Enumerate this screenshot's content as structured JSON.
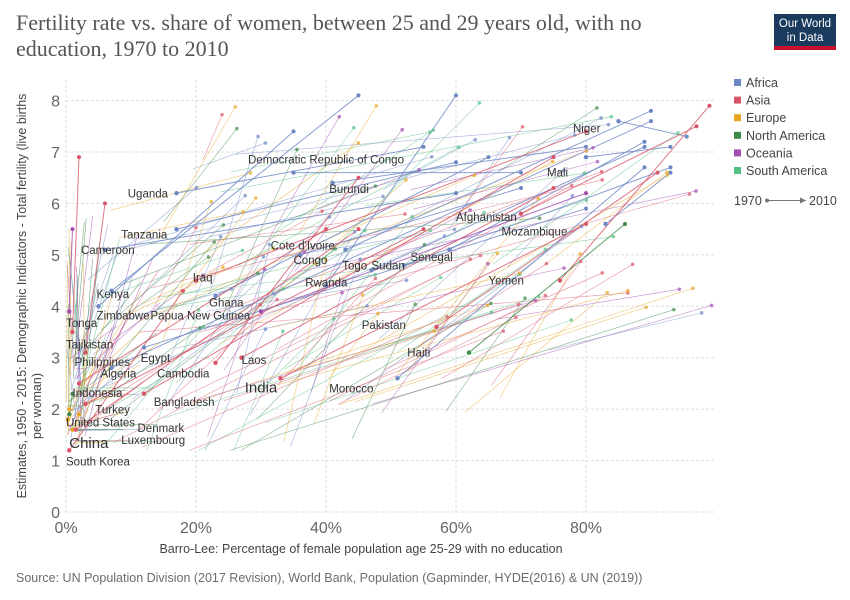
{
  "header": {
    "title": "Fertility rate vs. share of women, between 25 and 29 years old, with no education, 1970 to 2010",
    "logo_line1": "Our World",
    "logo_line2": "in Data"
  },
  "footer": {
    "source": "Source: UN Population Division (2017 Revision), World Bank, Population (Gapminder, HYDE(2016) & UN (2019))"
  },
  "colors": {
    "Africa": "#6d87c4",
    "Asia": "#d9566a",
    "Europe": "#e8a524",
    "North America": "#3e8a4a",
    "Oceania": "#a04cb0",
    "South America": "#55c083"
  },
  "chart_data": {
    "type": "scatter",
    "title": "Fertility rate vs. share of women, between 25 and 29 years old, with no education, 1970 to 2010",
    "xlabel": "Barro-Lee: Percentage of female population age 25-29 with no education",
    "ylabel": "Estimates, 1950 - 2015: Demographic Indicators - Total fertility (live births per woman)",
    "xlim": [
      0,
      100
    ],
    "ylim": [
      0,
      8.4
    ],
    "x_ticks": [
      "0%",
      "20%",
      "40%",
      "60%",
      "80%"
    ],
    "y_ticks": [
      "0",
      "1",
      "2",
      "3",
      "4",
      "5",
      "6",
      "7",
      "8"
    ],
    "legend": {
      "position": "right",
      "entries": [
        "Africa",
        "Asia",
        "Europe",
        "North America",
        "Oceania",
        "South America"
      ],
      "time_start": "1970",
      "time_end": "2010"
    },
    "labeled_series": [
      {
        "name": "Niger",
        "region": "Africa",
        "x": [
          95.5,
          85
        ],
        "y": [
          7.3,
          7.6
        ]
      },
      {
        "name": "Mali",
        "region": "Africa",
        "x": [
          93,
          80
        ],
        "y": [
          7.1,
          6.9
        ]
      },
      {
        "name": "Democratic Republic of Congo",
        "region": "Africa",
        "x": [
          70,
          35
        ],
        "y": [
          6.6,
          6.6
        ]
      },
      {
        "name": "Burundi",
        "region": "Africa",
        "x": [
          80,
          41
        ],
        "y": [
          7.1,
          6.4
        ]
      },
      {
        "name": "Uganda",
        "region": "Africa",
        "x": [
          55,
          17
        ],
        "y": [
          7.1,
          6.2
        ]
      },
      {
        "name": "Tanzania",
        "region": "Africa",
        "x": [
          60,
          17
        ],
        "y": [
          6.8,
          5.5
        ]
      },
      {
        "name": "Cameroon",
        "region": "Africa",
        "x": [
          60,
          6
        ],
        "y": [
          6.2,
          5.1
        ]
      },
      {
        "name": "Afghanistan",
        "region": "Asia",
        "x": [
          97,
          70
        ],
        "y": [
          7.5,
          5.8
        ]
      },
      {
        "name": "Mozambique",
        "region": "Africa",
        "x": [
          93,
          83
        ],
        "y": [
          6.6,
          5.6
        ]
      },
      {
        "name": "Cote d'Ivoire",
        "region": "Africa",
        "x": [
          90,
          43
        ],
        "y": [
          7.8,
          5.1
        ]
      },
      {
        "name": "Congo",
        "region": "Africa",
        "x": [
          70,
          36
        ],
        "y": [
          6.3,
          5.0
        ]
      },
      {
        "name": "Togo",
        "region": "Africa",
        "x": [
          89,
          47
        ],
        "y": [
          7.1,
          4.7
        ]
      },
      {
        "name": "Sudan",
        "region": "Africa",
        "x": [
          93,
          52
        ],
        "y": [
          6.7,
          4.8
        ]
      },
      {
        "name": "Senegal",
        "region": "Africa",
        "x": [
          89,
          59
        ],
        "y": [
          7.2,
          5.1
        ]
      },
      {
        "name": "Yemen",
        "region": "Asia",
        "x": [
          99,
          76
        ],
        "y": [
          7.9,
          4.5
        ]
      },
      {
        "name": "Rwanda",
        "region": "Africa",
        "x": [
          60,
          40
        ],
        "y": [
          8.1,
          4.4
        ]
      },
      {
        "name": "Iraq",
        "region": "Asia",
        "x": [
          80,
          20
        ],
        "y": [
          7.4,
          4.5
        ]
      },
      {
        "name": "Kenya",
        "region": "Africa",
        "x": [
          45,
          7
        ],
        "y": [
          8.1,
          4.3
        ]
      },
      {
        "name": "Ghana",
        "region": "Africa",
        "x": [
          65,
          23
        ],
        "y": [
          6.9,
          4.2
        ]
      },
      {
        "name": "Zimbabwe",
        "region": "Africa",
        "x": [
          35,
          5
        ],
        "y": [
          7.4,
          4.0
        ]
      },
      {
        "name": "Papua New Guinea",
        "region": "Oceania",
        "x": [
          80,
          30
        ],
        "y": [
          6.2,
          3.9
        ]
      },
      {
        "name": "Tonga",
        "region": "Oceania",
        "x": [
          1,
          0.5
        ],
        "y": [
          5.5,
          3.9
        ]
      },
      {
        "name": "Pakistan",
        "region": "Asia",
        "x": [
          91,
          57
        ],
        "y": [
          6.6,
          3.6
        ]
      },
      {
        "name": "Tajikistan",
        "region": "Asia",
        "x": [
          2,
          1
        ],
        "y": [
          6.9,
          3.5
        ]
      },
      {
        "name": "Haiti",
        "region": "North America",
        "x": [
          86,
          62
        ],
        "y": [
          5.6,
          3.1
        ]
      },
      {
        "name": "Philippines",
        "region": "Asia",
        "x": [
          6,
          3
        ],
        "y": [
          6.0,
          3.1
        ]
      },
      {
        "name": "Egypt",
        "region": "Africa",
        "x": [
          80,
          12
        ],
        "y": [
          5.9,
          3.2
        ]
      },
      {
        "name": "Laos",
        "region": "Asia",
        "x": [
          75,
          27
        ],
        "y": [
          6.3,
          3.0
        ]
      },
      {
        "name": "Cambodia",
        "region": "Asia",
        "x": [
          45,
          23
        ],
        "y": [
          6.5,
          2.9
        ]
      },
      {
        "name": "Algeria",
        "region": "Africa",
        "x": [
          90,
          7
        ],
        "y": [
          7.6,
          2.8
        ]
      },
      {
        "name": "India",
        "region": "Asia",
        "x": [
          80,
          33
        ],
        "y": [
          5.6,
          2.6
        ]
      },
      {
        "name": "Morocco",
        "region": "Africa",
        "x": [
          89,
          51
        ],
        "y": [
          6.7,
          2.6
        ]
      },
      {
        "name": "Indonesia",
        "region": "Asia",
        "x": [
          40,
          2
        ],
        "y": [
          5.5,
          2.5
        ]
      },
      {
        "name": "Bangladesh",
        "region": "Asia",
        "x": [
          75,
          12
        ],
        "y": [
          6.9,
          2.3
        ]
      },
      {
        "name": "Turkey",
        "region": "Asia",
        "x": [
          55,
          3
        ],
        "y": [
          5.5,
          2.1
        ]
      },
      {
        "name": "United States",
        "region": "North America",
        "x": [
          1,
          0.5
        ],
        "y": [
          2.3,
          1.9
        ]
      },
      {
        "name": "Denmark",
        "region": "Europe",
        "x": [
          0.5,
          0.3
        ],
        "y": [
          2.0,
          1.8
        ]
      },
      {
        "name": "Luxembourg",
        "region": "Europe",
        "x": [
          2,
          1
        ],
        "y": [
          1.9,
          1.6
        ]
      },
      {
        "name": "China",
        "region": "Asia",
        "x": [
          45,
          1.5
        ],
        "y": [
          5.5,
          1.6
        ]
      },
      {
        "name": "South Korea",
        "region": "Asia",
        "x": [
          18,
          0.5
        ],
        "y": [
          4.3,
          1.2
        ]
      }
    ],
    "labels": [
      {
        "text": "Niger",
        "x": 78,
        "y": 7.38
      },
      {
        "text": "Mali",
        "x": 74,
        "y": 6.52
      },
      {
        "text": "Democratic Republic of Congo",
        "x": 28,
        "y": 6.78
      },
      {
        "text": "Burundi",
        "x": 40.5,
        "y": 6.2
      },
      {
        "text": "Uganda",
        "x": 9.5,
        "y": 6.12
      },
      {
        "text": "Tanzania",
        "x": 8.5,
        "y": 5.32
      },
      {
        "text": "Cameroon",
        "x": 2.3,
        "y": 5.02
      },
      {
        "text": "Afghanistan",
        "x": 60,
        "y": 5.66
      },
      {
        "text": "Mozambique",
        "x": 67,
        "y": 5.38
      },
      {
        "text": "Cote d'Ivoire",
        "x": 31.5,
        "y": 5.1
      },
      {
        "text": "Congo",
        "x": 35,
        "y": 4.82
      },
      {
        "text": "Togo",
        "x": 42.5,
        "y": 4.72
      },
      {
        "text": "Sudan",
        "x": 47,
        "y": 4.72
      },
      {
        "text": "Senegal",
        "x": 53,
        "y": 4.88
      },
      {
        "text": "Yemen",
        "x": 65,
        "y": 4.42
      },
      {
        "text": "Rwanda",
        "x": 36.8,
        "y": 4.38
      },
      {
        "text": "Iraq",
        "x": 19.5,
        "y": 4.48
      },
      {
        "text": "Kenya",
        "x": 4.7,
        "y": 4.16
      },
      {
        "text": "Ghana",
        "x": 22,
        "y": 4.0
      },
      {
        "text": "Zimbabwe",
        "x": 4.7,
        "y": 3.74
      },
      {
        "text": "Papua New Guinea",
        "x": 13,
        "y": 3.74
      },
      {
        "text": "Tonga",
        "x": 0,
        "y": 3.6
      },
      {
        "text": "Pakistan",
        "x": 45.5,
        "y": 3.56
      },
      {
        "text": "Tajikistan",
        "x": 0,
        "y": 3.18
      },
      {
        "text": "Haiti",
        "x": 52.5,
        "y": 3.02
      },
      {
        "text": "Philippines",
        "x": 1.3,
        "y": 2.84
      },
      {
        "text": "Egypt",
        "x": 11.5,
        "y": 2.92
      },
      {
        "text": "Laos",
        "x": 27,
        "y": 2.88
      },
      {
        "text": "Cambodia",
        "x": 14,
        "y": 2.62
      },
      {
        "text": "Algeria",
        "x": 5.3,
        "y": 2.62
      },
      {
        "text": "India",
        "x": 27.5,
        "y": 2.32,
        "big": true
      },
      {
        "text": "Morocco",
        "x": 40.5,
        "y": 2.32
      },
      {
        "text": "Indonesia",
        "x": 1,
        "y": 2.24
      },
      {
        "text": "Bangladesh",
        "x": 13.5,
        "y": 2.06
      },
      {
        "text": "Turkey",
        "x": 4.5,
        "y": 1.92
      },
      {
        "text": "United States",
        "x": 0,
        "y": 1.66
      },
      {
        "text": "Denmark",
        "x": 11,
        "y": 1.56
      },
      {
        "text": "Luxembourg",
        "x": 8.5,
        "y": 1.32
      },
      {
        "text": "China",
        "x": 0.5,
        "y": 1.24,
        "big": true
      },
      {
        "text": "South Korea",
        "x": 0,
        "y": 0.9
      }
    ]
  }
}
